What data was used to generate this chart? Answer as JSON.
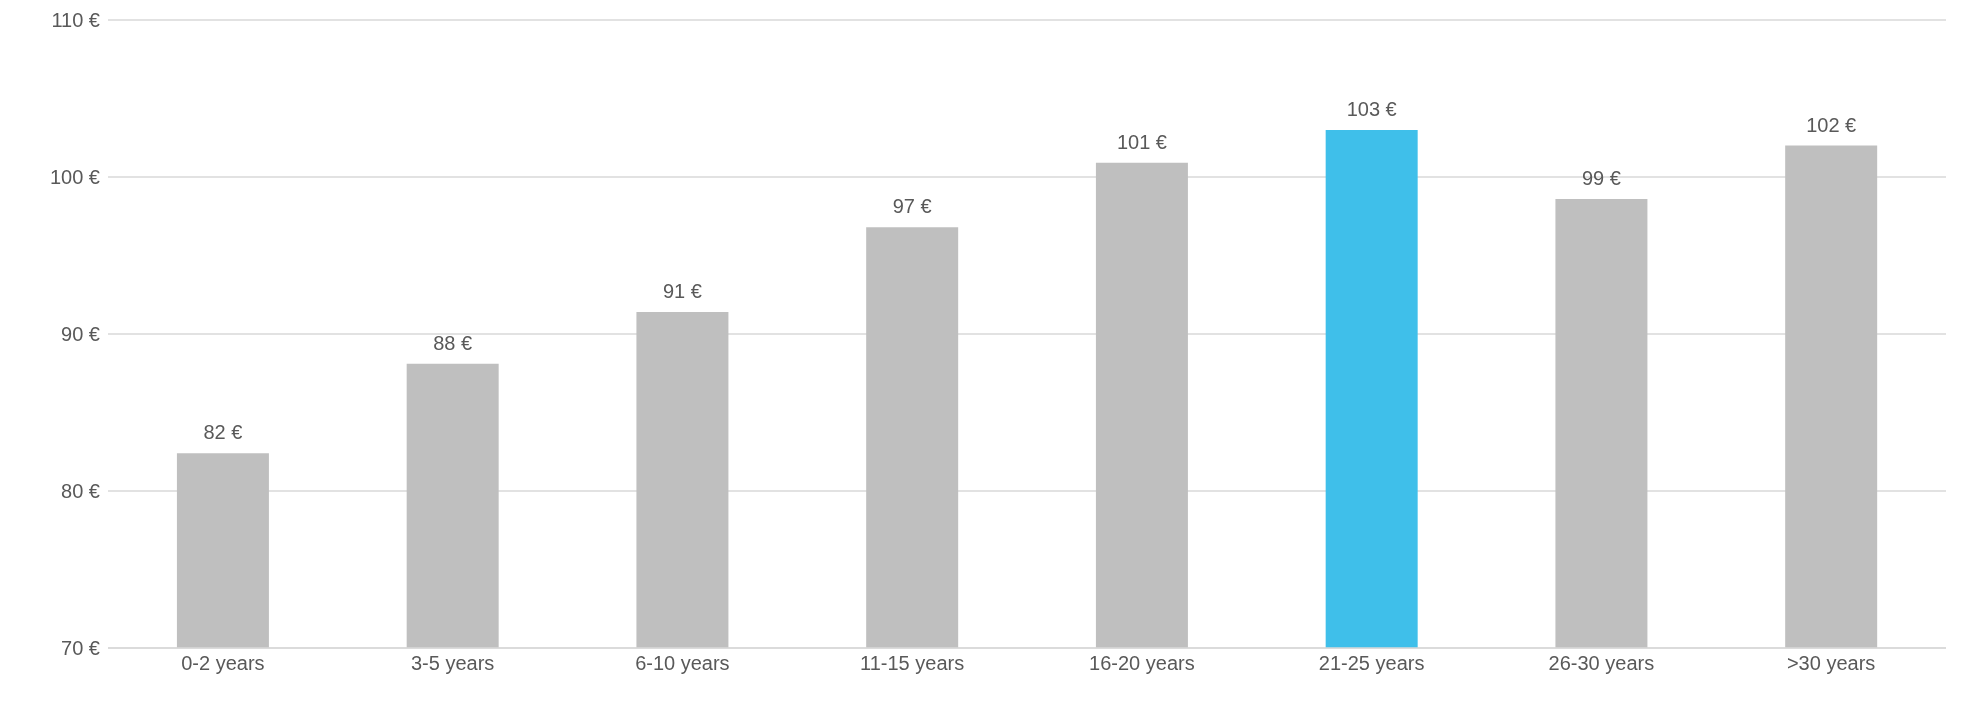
{
  "chart_data": {
    "type": "bar",
    "categories": [
      "0-2 years",
      "3-5 years",
      "6-10 years",
      "11-15 years",
      "16-20 years",
      "21-25 years",
      "26-30 years",
      ">30 years"
    ],
    "values": [
      82.4,
      88.1,
      91.4,
      96.8,
      100.9,
      103.0,
      98.6,
      102.0
    ],
    "colors": [
      "#bfbfbf",
      "#bfbfbf",
      "#bfbfbf",
      "#bfbfbf",
      "#bfbfbf",
      "#3fbfea",
      "#bfbfbf",
      "#bfbfbf"
    ],
    "value_labels": [
      "82 €",
      "88 €",
      "91 €",
      "97 €",
      "101 €",
      "103 €",
      "99 €",
      "102 €"
    ],
    "ylim": [
      70,
      110
    ],
    "yticks": [
      {
        "value": 70,
        "label": "70 €"
      },
      {
        "value": 80,
        "label": "80 €"
      },
      {
        "value": 90,
        "label": "90 €"
      },
      {
        "value": 100,
        "label": "100 €"
      },
      {
        "value": 110,
        "label": "110 €"
      }
    ],
    "grid": "y",
    "legend": false
  }
}
